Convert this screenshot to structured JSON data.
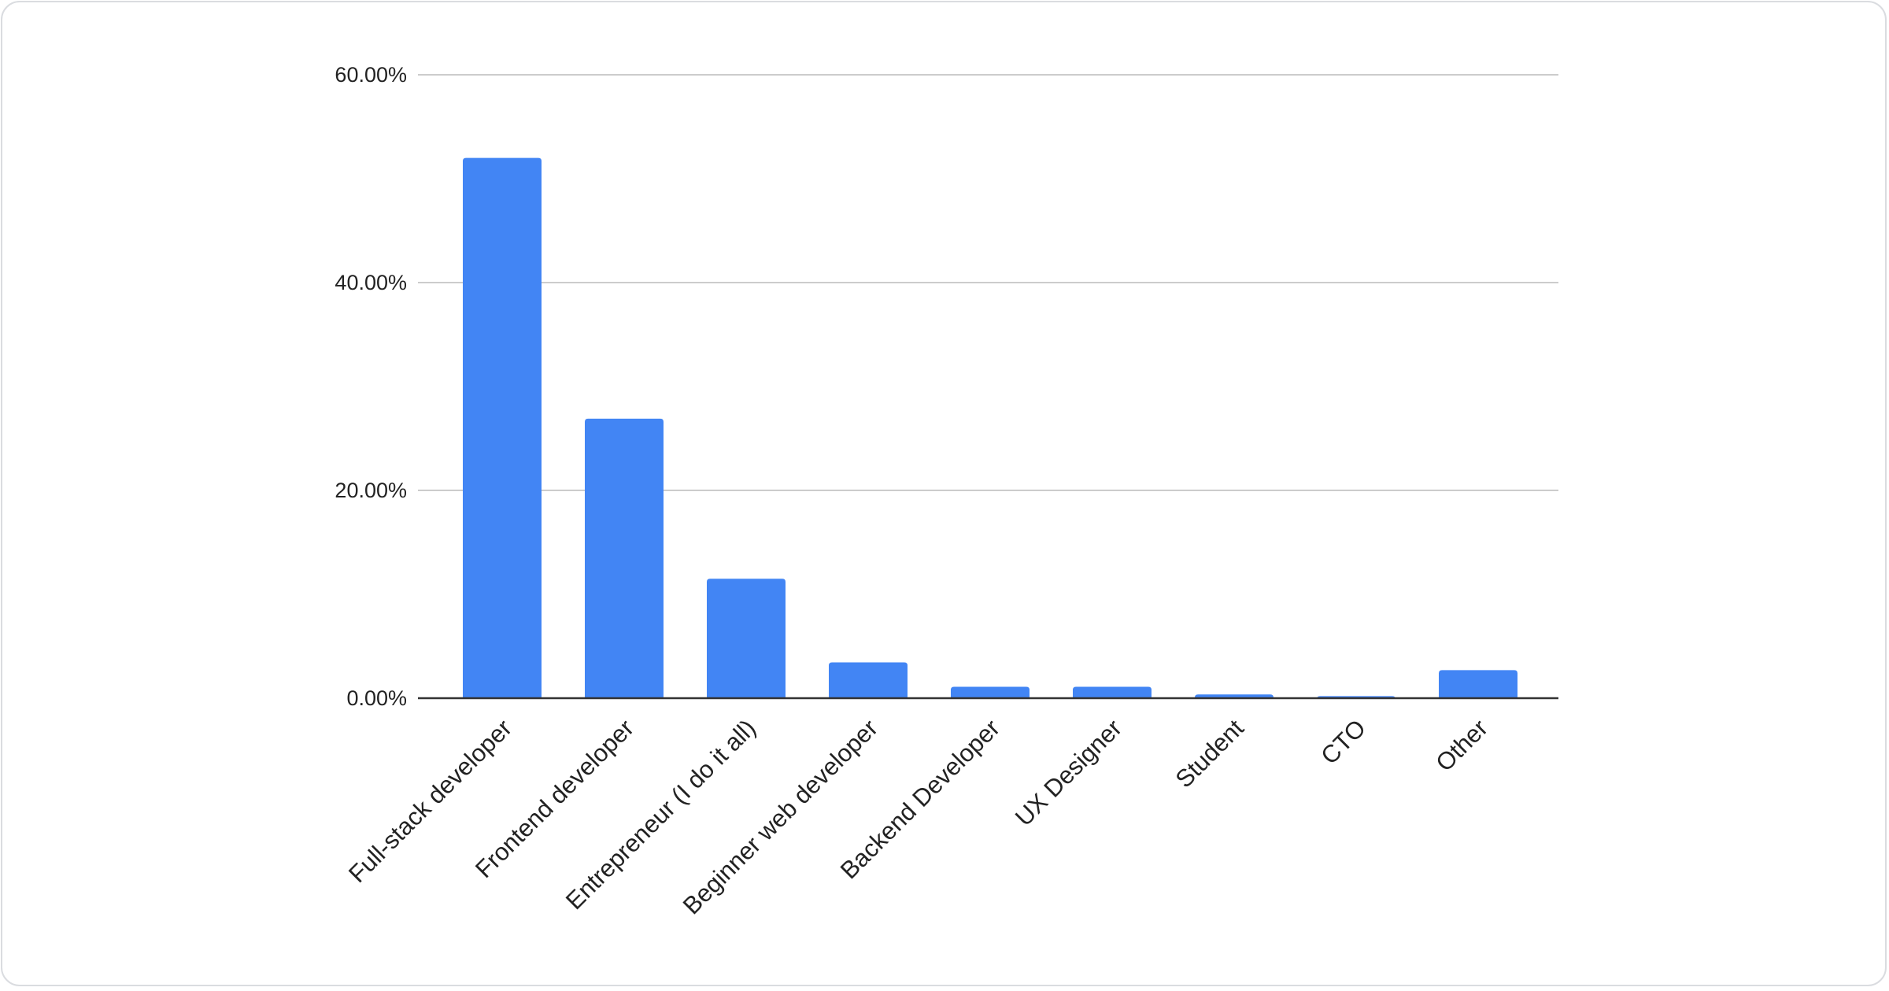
{
  "chart_data": {
    "type": "bar",
    "title": "",
    "xlabel": "",
    "ylabel": "",
    "categories": [
      "Full-stack developer",
      "Frontend developer",
      "Entrepreneur (I do it all)",
      "Beginner web developer",
      "Backend Developer",
      "UX Designer",
      "Student",
      "CTO",
      "Other"
    ],
    "values": [
      52.0,
      26.9,
      11.5,
      3.45,
      1.1,
      1.1,
      0.36,
      0.2,
      2.7
    ],
    "ylim": [
      0,
      60
    ],
    "yticks": [
      "0.00%",
      "20.00%",
      "40.00%",
      "60.00%"
    ],
    "grid": true,
    "bar_color": "#4285f4"
  }
}
